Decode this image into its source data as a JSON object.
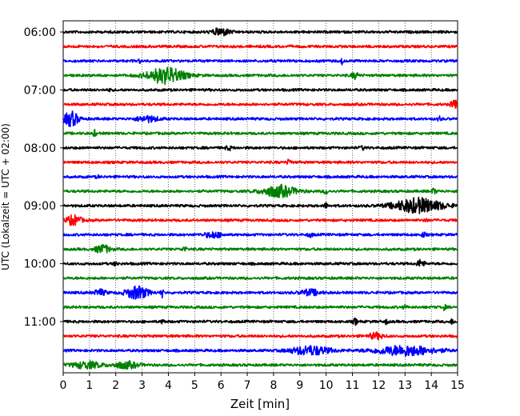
{
  "chart_data": {
    "type": "line",
    "subtype": "helicorder",
    "title": "",
    "xlabel": "Zeit  [min]",
    "ylabel": "UTC (Lokalzeit = UTC + 02:00)",
    "xlim": [
      0,
      15
    ],
    "x_ticks": [
      "0",
      "1",
      "2",
      "3",
      "4",
      "5",
      "6",
      "7",
      "8",
      "9",
      "10",
      "11",
      "12",
      "13",
      "14",
      "15"
    ],
    "y_ticks": [
      "06:00",
      "07:00",
      "08:00",
      "09:00",
      "10:00",
      "11:00"
    ],
    "y_tick_rows": [
      0,
      4,
      8,
      12,
      16,
      20
    ],
    "grid": "vertical dotted at each minute",
    "colors": [
      "#000000",
      "#ff0000",
      "#0000ff",
      "#008000"
    ],
    "rows": [
      {
        "index": 0,
        "color": "#000000",
        "events": [
          {
            "t": 6.0,
            "amp": 0.45,
            "dur": 0.7
          }
        ]
      },
      {
        "index": 1,
        "color": "#ff0000",
        "events": []
      },
      {
        "index": 2,
        "color": "#0000ff",
        "events": [
          {
            "t": 2.9,
            "amp": 0.2,
            "dur": 0.1
          },
          {
            "t": 10.6,
            "amp": 0.4,
            "dur": 0.08
          }
        ]
      },
      {
        "index": 3,
        "color": "#008000",
        "events": [
          {
            "t": 3.9,
            "amp": 1.0,
            "dur": 1.5
          },
          {
            "t": 11.1,
            "amp": 0.35,
            "dur": 0.3
          }
        ]
      },
      {
        "index": 4,
        "color": "#000000",
        "events": [
          {
            "t": 1.8,
            "amp": 0.25,
            "dur": 0.1
          }
        ]
      },
      {
        "index": 5,
        "color": "#ff0000",
        "events": [
          {
            "t": 14.9,
            "amp": 0.6,
            "dur": 0.3
          }
        ]
      },
      {
        "index": 6,
        "color": "#0000ff",
        "events": [
          {
            "t": 0.3,
            "amp": 0.9,
            "dur": 0.6
          },
          {
            "t": 3.2,
            "amp": 0.35,
            "dur": 0.9
          },
          {
            "t": 14.3,
            "amp": 0.4,
            "dur": 0.1
          }
        ]
      },
      {
        "index": 7,
        "color": "#008000",
        "events": [
          {
            "t": 1.2,
            "amp": 0.35,
            "dur": 0.15
          }
        ]
      },
      {
        "index": 8,
        "color": "#000000",
        "events": [
          {
            "t": 6.3,
            "amp": 0.2,
            "dur": 0.3
          },
          {
            "t": 11.4,
            "amp": 0.2,
            "dur": 0.2
          }
        ]
      },
      {
        "index": 9,
        "color": "#ff0000",
        "events": [
          {
            "t": 8.6,
            "amp": 0.3,
            "dur": 0.2
          }
        ]
      },
      {
        "index": 10,
        "color": "#0000ff",
        "events": [
          {
            "t": 1.3,
            "amp": 0.2,
            "dur": 0.1
          }
        ]
      },
      {
        "index": 11,
        "color": "#008000",
        "events": [
          {
            "t": 8.2,
            "amp": 0.7,
            "dur": 1.4
          },
          {
            "t": 10.0,
            "amp": 0.3,
            "dur": 0.2
          },
          {
            "t": 14.1,
            "amp": 0.3,
            "dur": 0.2
          }
        ]
      },
      {
        "index": 12,
        "color": "#000000",
        "events": [
          {
            "t": 13.5,
            "amp": 0.9,
            "dur": 2.0
          },
          {
            "t": 10.0,
            "amp": 0.3,
            "dur": 0.15
          }
        ]
      },
      {
        "index": 13,
        "color": "#ff0000",
        "events": [
          {
            "t": 0.4,
            "amp": 0.6,
            "dur": 0.6
          },
          {
            "t": 13.8,
            "amp": 0.3,
            "dur": 0.1
          }
        ]
      },
      {
        "index": 14,
        "color": "#0000ff",
        "events": [
          {
            "t": 5.7,
            "amp": 0.35,
            "dur": 0.7
          },
          {
            "t": 9.4,
            "amp": 0.25,
            "dur": 0.2
          },
          {
            "t": 13.7,
            "amp": 0.25,
            "dur": 0.2
          }
        ]
      },
      {
        "index": 15,
        "color": "#008000",
        "events": [
          {
            "t": 1.5,
            "amp": 0.5,
            "dur": 0.6
          },
          {
            "t": 4.6,
            "amp": 0.25,
            "dur": 0.2
          }
        ]
      },
      {
        "index": 16,
        "color": "#000000",
        "events": [
          {
            "t": 2.0,
            "amp": 0.3,
            "dur": 0.15
          },
          {
            "t": 13.6,
            "amp": 0.45,
            "dur": 0.3
          }
        ]
      },
      {
        "index": 17,
        "color": "#008000",
        "events": []
      },
      {
        "index": 18,
        "color": "#0000ff",
        "events": [
          {
            "t": 1.4,
            "amp": 0.35,
            "dur": 0.5
          },
          {
            "t": 2.8,
            "amp": 0.8,
            "dur": 0.9
          },
          {
            "t": 3.75,
            "amp": 1.0,
            "dur": 0.08
          },
          {
            "t": 9.4,
            "amp": 0.35,
            "dur": 0.8
          }
        ]
      },
      {
        "index": 19,
        "color": "#008000",
        "events": [
          {
            "t": 13.0,
            "amp": 0.2,
            "dur": 0.2
          },
          {
            "t": 14.5,
            "amp": 0.4,
            "dur": 0.1
          }
        ]
      },
      {
        "index": 20,
        "color": "#000000",
        "events": [
          {
            "t": 3.8,
            "amp": 0.25,
            "dur": 0.15
          },
          {
            "t": 11.1,
            "amp": 0.4,
            "dur": 0.15
          },
          {
            "t": 12.3,
            "amp": 0.4,
            "dur": 0.1
          },
          {
            "t": 14.8,
            "amp": 0.3,
            "dur": 0.15
          }
        ]
      },
      {
        "index": 21,
        "color": "#ff0000",
        "events": [
          {
            "t": 11.9,
            "amp": 0.35,
            "dur": 0.6
          }
        ]
      },
      {
        "index": 22,
        "color": "#0000ff",
        "events": [
          {
            "t": 9.4,
            "amp": 0.55,
            "dur": 1.6
          },
          {
            "t": 13.0,
            "amp": 0.6,
            "dur": 2.5
          }
        ]
      },
      {
        "index": 23,
        "color": "#008000",
        "events": [
          {
            "t": 0.9,
            "amp": 0.4,
            "dur": 1.2
          },
          {
            "t": 2.4,
            "amp": 0.4,
            "dur": 1.0
          }
        ]
      }
    ]
  }
}
